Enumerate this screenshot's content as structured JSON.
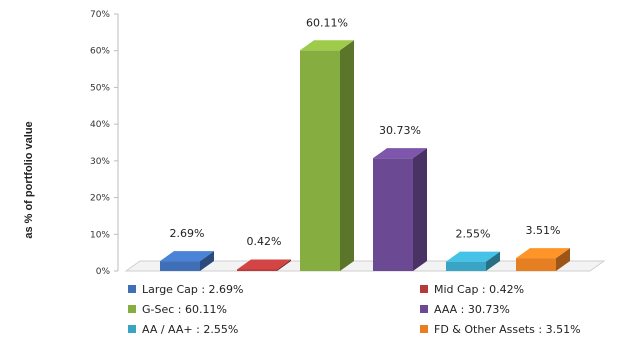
{
  "chart_data": {
    "type": "bar",
    "ylabel": "as % of portfolio value",
    "ylim": [
      0,
      70
    ],
    "yticks": [
      "0%",
      "10%",
      "20%",
      "30%",
      "40%",
      "50%",
      "60%",
      "70%"
    ],
    "categories": [
      "Large Cap",
      "Mid Cap",
      "G-Sec",
      "AAA",
      "AA / AA+",
      "FD & Other Assets"
    ],
    "values": [
      2.69,
      0.42,
      60.11,
      30.73,
      2.55,
      3.51
    ],
    "data_labels": [
      "2.69%",
      "0.42%",
      "60.11%",
      "30.73%",
      "2.55%",
      "3.51%"
    ],
    "colors": [
      "#3f6fb6",
      "#b33a3a",
      "#86ad3f",
      "#6b4a93",
      "#3aa4c4",
      "#e67e22"
    ],
    "legend": [
      {
        "label": "Large Cap : 2.69%",
        "color": "#3f6fb6"
      },
      {
        "label": "Mid Cap : 0.42%",
        "color": "#b33a3a"
      },
      {
        "label": "G-Sec : 60.11%",
        "color": "#86ad3f"
      },
      {
        "label": "AAA : 30.73%",
        "color": "#6b4a93"
      },
      {
        "label": "AA / AA+ : 2.55%",
        "color": "#3aa4c4"
      },
      {
        "label": "FD & Other Assets : 3.51%",
        "color": "#e67e22"
      }
    ],
    "legend_position": "bottom",
    "grid": false,
    "style": "3d"
  }
}
